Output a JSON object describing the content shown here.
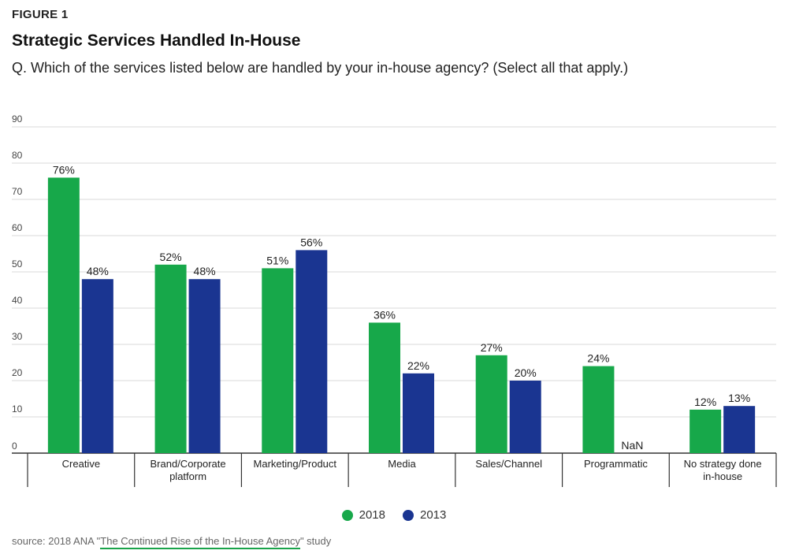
{
  "figure_label": "FIGURE 1",
  "title": "Strategic Services Handled In-House",
  "subtitle": "Q. Which of the services listed below are handled by your in-house agency? (Select all that apply.)",
  "source": {
    "prefix": "source: 2018 ANA \"",
    "link_text": "The Continued Rise of the In-House Agency",
    "suffix": "\" study"
  },
  "colors": {
    "series_2018": "#17a84a",
    "series_2013": "#1a3591",
    "grid": "#d9d9d9",
    "axis": "#333333"
  },
  "chart_data": {
    "type": "bar",
    "categories": [
      [
        "Creative"
      ],
      [
        "Brand/Corporate",
        "platform"
      ],
      [
        "Marketing/Product"
      ],
      [
        "Media"
      ],
      [
        "Sales/Channel"
      ],
      [
        "Programmatic"
      ],
      [
        "No strategy done",
        "in-house"
      ]
    ],
    "series": [
      {
        "name": "2018",
        "values": [
          76,
          52,
          51,
          36,
          27,
          24,
          12
        ],
        "labels": [
          "76%",
          "52%",
          "51%",
          "36%",
          "27%",
          "24%",
          "12%"
        ]
      },
      {
        "name": "2013",
        "values": [
          48,
          48,
          56,
          22,
          20,
          null,
          13
        ],
        "labels": [
          "48%",
          "48%",
          "56%",
          "22%",
          "20%",
          "NaN",
          "13%"
        ]
      }
    ],
    "ylim": [
      0,
      90
    ],
    "yticks": [
      0,
      10,
      20,
      30,
      40,
      50,
      60,
      70,
      80,
      90
    ],
    "grid": true,
    "legend_position": "bottom-center"
  }
}
